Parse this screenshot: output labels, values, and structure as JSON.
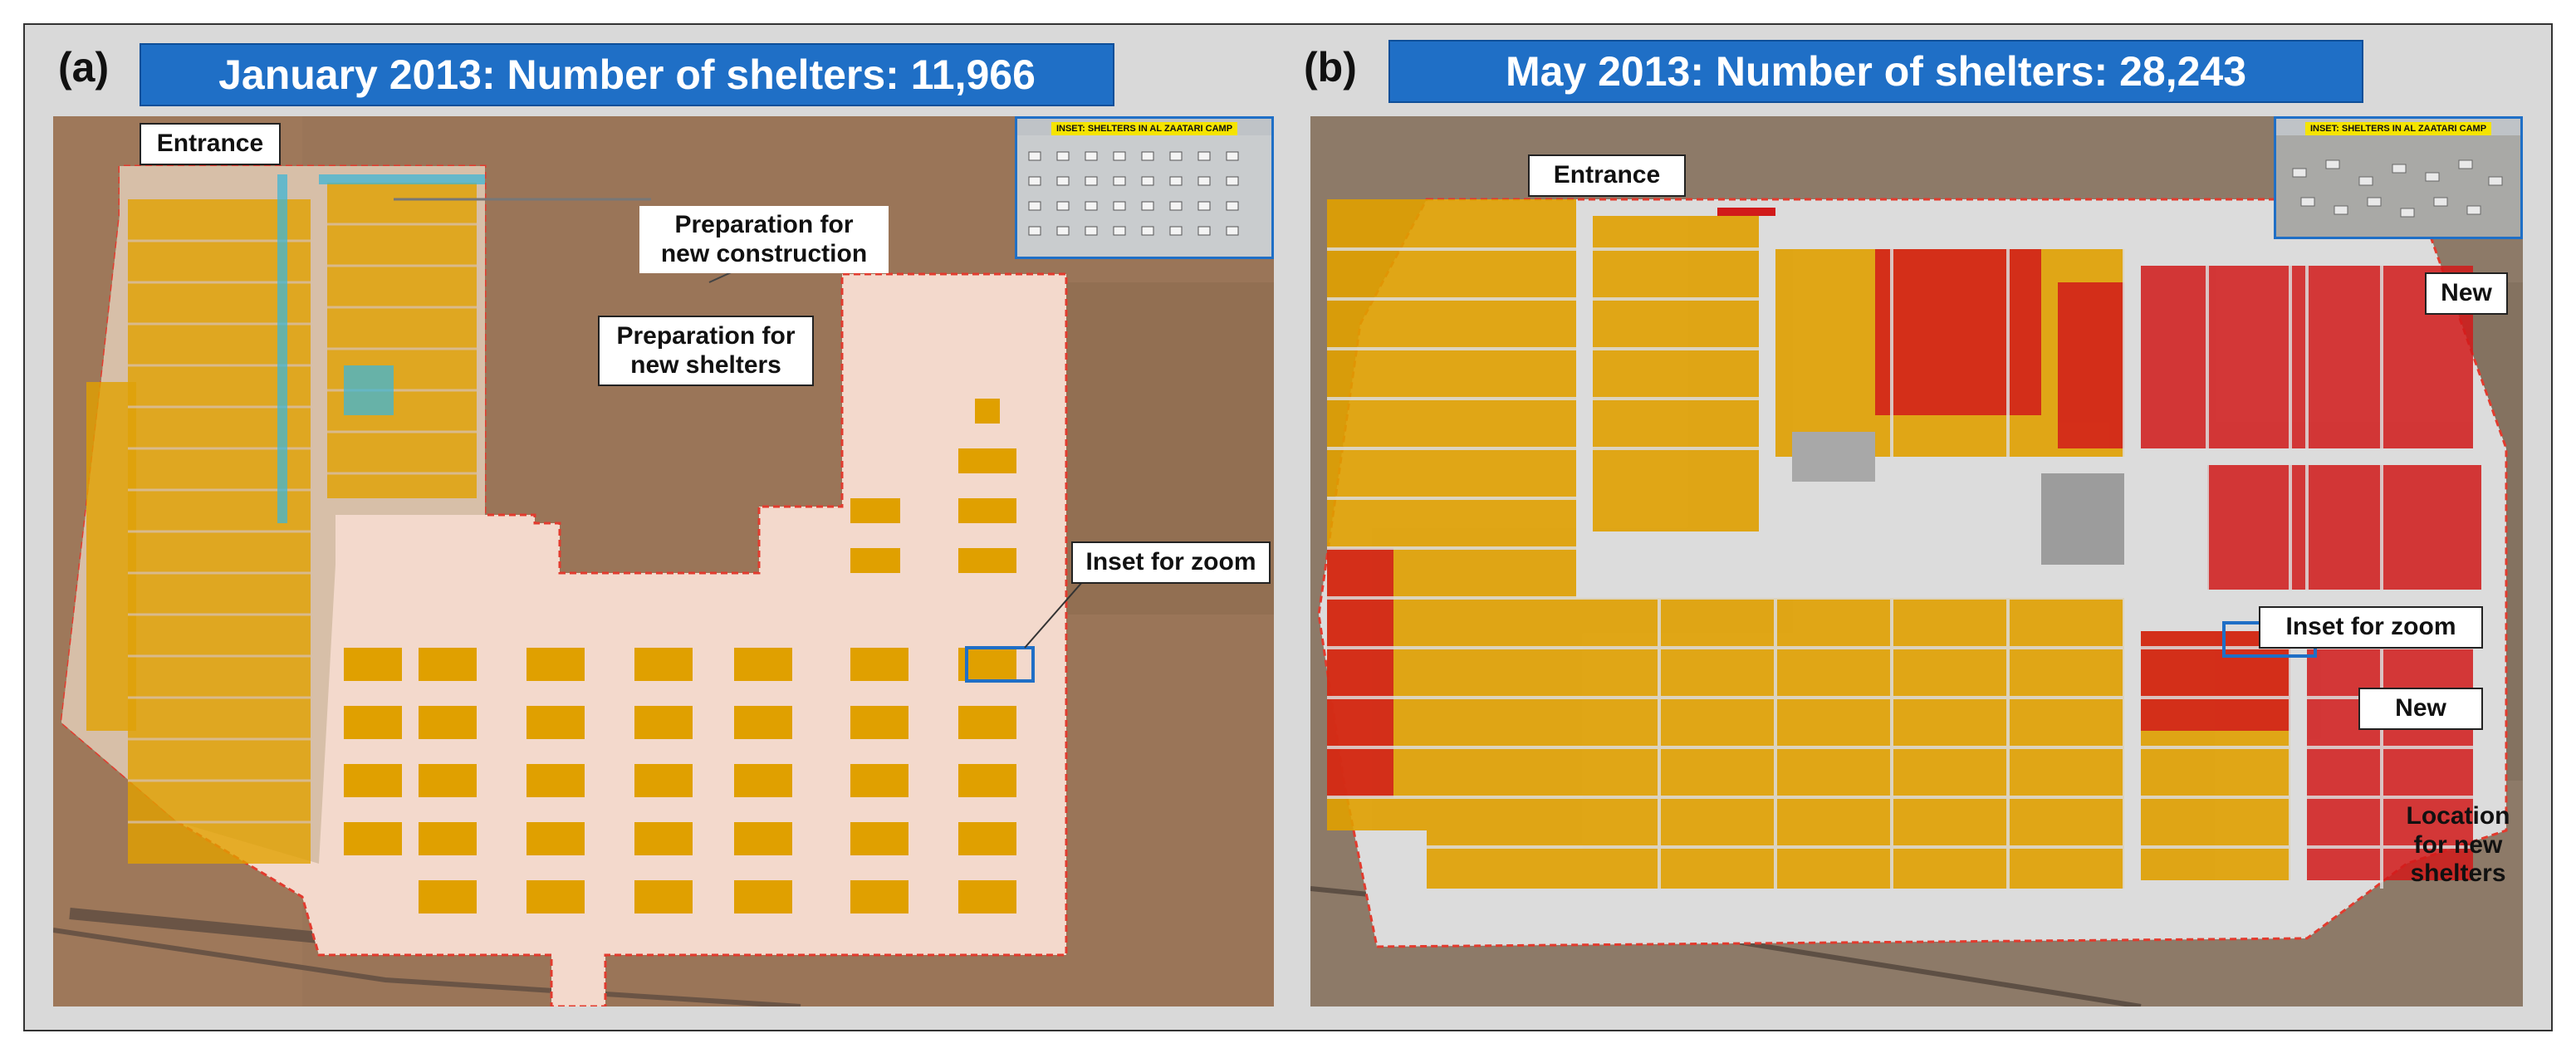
{
  "panels": [
    {
      "letter": "(a)",
      "banner": "January 2013: Number of shelters: 11,966",
      "labels": {
        "entrance": "Entrance",
        "prep_construction": "Preparation for new construction",
        "prep_shelters": "Preparation for new shelters",
        "inset_zoom": "Inset for zoom"
      },
      "inset_title": "INSET: SHELTERS IN AL ZAATARI CAMP"
    },
    {
      "letter": "(b)",
      "banner": "May 2013: Number of shelters: 28,243",
      "labels": {
        "entrance": "Entrance",
        "new_top": "New",
        "inset_zoom": "Inset for zoom",
        "new_mid": "New",
        "location_new": "Location for new shelters"
      },
      "inset_title": "INSET: SHELTERS IN AL ZAATARI CAMP"
    }
  ],
  "colors": {
    "banner_blue": "#1f6fc6",
    "desert": "#9a7558",
    "camp_ground": "#f3d9cc",
    "shelter_orange": "#e0a000",
    "shelter_red": "#d11a1a",
    "boundary_red": "#e23b2e",
    "structure_cyan": "#3fb6d6"
  }
}
